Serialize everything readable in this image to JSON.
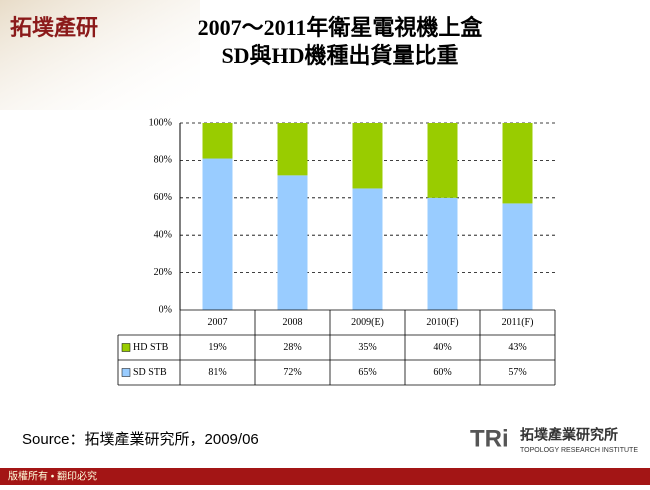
{
  "logo": "拓墣產研",
  "source": "Source：拓墣產業研究所，2009/06",
  "footer": "版權所有 • 翻印必究",
  "brand": {
    "mark": "TRi",
    "name": "拓墣產業研究所",
    "english": "TOPOLOGY RESEARCH INSTITUTE"
  },
  "chart_data": {
    "type": "stacked_bar",
    "title": [
      "2007～2011年衛星電視機上盒",
      "SD與HD機種出貨量比重"
    ],
    "categories": [
      "2007",
      "2008",
      "2009(E)",
      "2010(F)",
      "2011(F)"
    ],
    "series": [
      {
        "name": "HD STB",
        "color": "#99cc00",
        "values": [
          19,
          28,
          35,
          40,
          43
        ],
        "value_labels": [
          "19%",
          "28%",
          "35%",
          "40%",
          "43%"
        ]
      },
      {
        "name": "SD STB",
        "color": "#99ccff",
        "values": [
          81,
          72,
          65,
          60,
          57
        ],
        "value_labels": [
          "81%",
          "72%",
          "65%",
          "60%",
          "57%"
        ]
      }
    ],
    "ylim": [
      0,
      100
    ],
    "yticks": [
      {
        "value": 0,
        "label": "0%"
      },
      {
        "value": 20,
        "label": "20%"
      },
      {
        "value": 40,
        "label": "40%"
      },
      {
        "value": 60,
        "label": "60%"
      },
      {
        "value": 80,
        "label": "80%"
      },
      {
        "value": 100,
        "label": "100%"
      }
    ],
    "grid": true
  }
}
